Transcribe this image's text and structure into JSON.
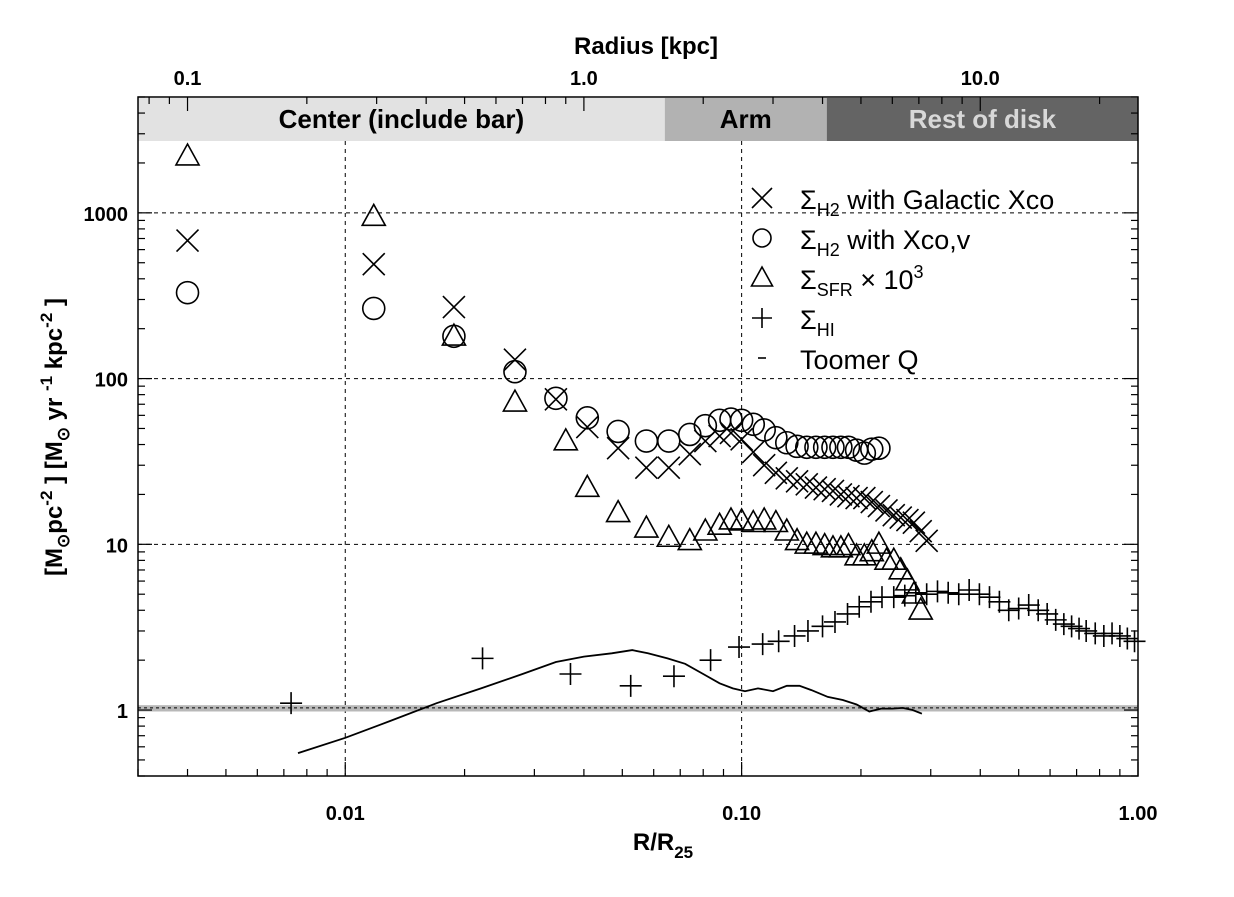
{
  "chart_data": {
    "type": "scatter",
    "x_scale": "log",
    "y_scale": "log",
    "xlim": [
      0.003,
      1.0
    ],
    "ylim": [
      0.4,
      5000
    ],
    "top_xlim_kpc": [
      0.075,
      25
    ],
    "grid": "dashed lines at major decades",
    "legend_placement": "top-right",
    "xlabel": {
      "base": "R/R",
      "sub": "25"
    },
    "top_xlabel": "Radius [kpc]",
    "ylabel": {
      "p1": "[M",
      "p1_sub": "⊙",
      "p2": "pc",
      "p2_sup": "-2",
      "p3": " ] [M",
      "p3_sub": "⊙",
      "p4": " yr ",
      "p4_sup": "-1",
      "p5": " kpc",
      "p5_sup": "-2",
      "p6": " ]"
    },
    "x_ticks": [
      {
        "value": 0.01,
        "label": "0.01"
      },
      {
        "value": 0.1,
        "label": "0.10"
      },
      {
        "value": 1.0,
        "label": "1.00"
      }
    ],
    "top_ticks": [
      {
        "value": 0.1,
        "label": "0.1"
      },
      {
        "value": 1.0,
        "label": "1.0"
      },
      {
        "value": 10.0,
        "label": "10.0"
      }
    ],
    "y_ticks": [
      {
        "value": 1,
        "label": "1"
      },
      {
        "value": 10,
        "label": "10"
      },
      {
        "value": 100,
        "label": "100"
      },
      {
        "value": 1000,
        "label": "1000"
      }
    ],
    "regions": [
      {
        "label": "Center (include bar)",
        "x0": 0.003,
        "x1": 0.064,
        "color": "#e2e2e2",
        "text_color": "#000000"
      },
      {
        "label": "Arm",
        "x0": 0.064,
        "x1": 0.164,
        "color": "#b2b2b2",
        "text_color": "#000000"
      },
      {
        "label": "Rest of disk",
        "x0": 0.164,
        "x1": 1.0,
        "color": "#646464",
        "text_color": "#d8d8d8"
      }
    ],
    "toomre_band": {
      "y0": 0.98,
      "y1": 1.07,
      "color": "#b8b8b8"
    },
    "toomre_line_y": 1.03,
    "legend": [
      {
        "marker": "cross",
        "sym": "Σ",
        "sub": "H2",
        "rest": " with Galactic Xco"
      },
      {
        "marker": "circle",
        "sym": "Σ",
        "sub": "H2",
        "rest": " with Xco,v"
      },
      {
        "marker": "triangle",
        "sym": "Σ",
        "sub": "SFR",
        "rest": " × 10",
        "sup": "3"
      },
      {
        "marker": "plus",
        "sym": "Σ",
        "sub": "HI",
        "rest": ""
      },
      {
        "marker": "dash",
        "sym": "",
        "sub": "",
        "rest": "Toomer Q"
      }
    ],
    "series": [
      {
        "name": "ΣH2 with Galactic Xco",
        "marker": "cross",
        "x": [
          0.004,
          0.0118,
          0.0188,
          0.0268,
          0.034,
          0.0408,
          0.0488,
          0.0575,
          0.0655,
          0.074,
          0.081,
          0.088,
          0.094,
          0.1,
          0.107,
          0.114,
          0.122,
          0.13,
          0.138,
          0.146,
          0.154,
          0.162,
          0.17,
          0.178,
          0.186,
          0.195,
          0.204,
          0.213,
          0.222,
          0.232,
          0.242,
          0.252,
          0.262,
          0.272,
          0.283,
          0.293
        ],
        "y": [
          680,
          490,
          270,
          130,
          75,
          51,
          38,
          29,
          29,
          35,
          42,
          45,
          47,
          43,
          36,
          30,
          27,
          25,
          24,
          23,
          22,
          21.5,
          21,
          20,
          19.5,
          19,
          19,
          18,
          17,
          16,
          15,
          14.5,
          14,
          13.5,
          12,
          10.5
        ]
      },
      {
        "name": "ΣH2 with Xco,v",
        "marker": "circle",
        "x": [
          0.004,
          0.0118,
          0.0188,
          0.0268,
          0.034,
          0.0408,
          0.0488,
          0.0575,
          0.0655,
          0.074,
          0.081,
          0.088,
          0.094,
          0.1,
          0.107,
          0.114,
          0.122,
          0.13,
          0.138,
          0.146,
          0.154,
          0.162,
          0.17,
          0.178,
          0.186,
          0.195,
          0.204,
          0.213,
          0.222
        ],
        "y": [
          330,
          265,
          180,
          110,
          76,
          58,
          48,
          42,
          42,
          46,
          52,
          56,
          57,
          56,
          53,
          49,
          44,
          41,
          39,
          38.5,
          38.5,
          38.5,
          38.5,
          38.5,
          38.5,
          37,
          35.5,
          37.5,
          38
        ]
      },
      {
        "name": "ΣSFR × 10^3",
        "marker": "triangle",
        "x": [
          0.004,
          0.0118,
          0.0188,
          0.0268,
          0.036,
          0.0408,
          0.0488,
          0.0575,
          0.0655,
          0.074,
          0.081,
          0.088,
          0.094,
          0.1,
          0.107,
          0.114,
          0.122,
          0.13,
          0.138,
          0.146,
          0.154,
          0.162,
          0.17,
          0.178,
          0.186,
          0.195,
          0.204,
          0.213,
          0.222,
          0.232,
          0.242,
          0.252,
          0.262,
          0.272,
          0.283
        ],
        "y": [
          2200,
          950,
          180,
          72,
          42,
          22,
          15.5,
          12.5,
          11,
          10.5,
          12,
          13,
          14,
          13.8,
          13.5,
          14,
          13.5,
          12,
          10.5,
          10,
          10,
          9.8,
          9.5,
          9.5,
          9.8,
          8.5,
          8.5,
          9,
          10,
          8,
          8,
          7,
          6,
          5,
          4
        ]
      },
      {
        "name": "ΣHI",
        "marker": "plus",
        "x": [
          0.0073,
          0.0222,
          0.037,
          0.0525,
          0.0675,
          0.0835,
          0.0985,
          0.113,
          0.124,
          0.136,
          0.147,
          0.16,
          0.172,
          0.185,
          0.198,
          0.212,
          0.226,
          0.242,
          0.258,
          0.275,
          0.293,
          0.312,
          0.332,
          0.353,
          0.375,
          0.398,
          0.422,
          0.447,
          0.472,
          0.5,
          0.53,
          0.56,
          0.59,
          0.62,
          0.65,
          0.68,
          0.71,
          0.74,
          0.78,
          0.82,
          0.86,
          0.9,
          0.94,
          0.98
        ],
        "y": [
          1.1,
          2.05,
          1.65,
          1.4,
          1.6,
          2.0,
          2.4,
          2.5,
          2.6,
          2.8,
          3.0,
          3.2,
          3.4,
          3.8,
          4.2,
          4.5,
          4.8,
          4.8,
          4.9,
          5.1,
          5.0,
          5.2,
          5.1,
          5.0,
          5.3,
          5.0,
          4.8,
          4.5,
          4.0,
          4.1,
          4.3,
          4.0,
          3.8,
          3.5,
          3.3,
          3.2,
          3.1,
          3.0,
          2.9,
          2.8,
          2.9,
          2.8,
          2.7,
          2.6
        ]
      }
    ],
    "toomre_q_line": {
      "name": "Toomer Q",
      "x": [
        0.0076,
        0.01,
        0.013,
        0.017,
        0.022,
        0.028,
        0.034,
        0.04,
        0.047,
        0.053,
        0.058,
        0.065,
        0.072,
        0.08,
        0.088,
        0.095,
        0.102,
        0.11,
        0.12,
        0.13,
        0.14,
        0.15,
        0.165,
        0.18,
        0.195,
        0.21,
        0.225,
        0.24,
        0.255,
        0.27,
        0.285
      ],
      "y": [
        0.55,
        0.68,
        0.86,
        1.1,
        1.35,
        1.65,
        1.95,
        2.1,
        2.2,
        2.3,
        2.2,
        2.05,
        1.9,
        1.65,
        1.45,
        1.35,
        1.3,
        1.35,
        1.3,
        1.4,
        1.4,
        1.32,
        1.2,
        1.15,
        1.08,
        0.98,
        1.02,
        1.02,
        1.03,
        1.0,
        0.95
      ]
    }
  }
}
